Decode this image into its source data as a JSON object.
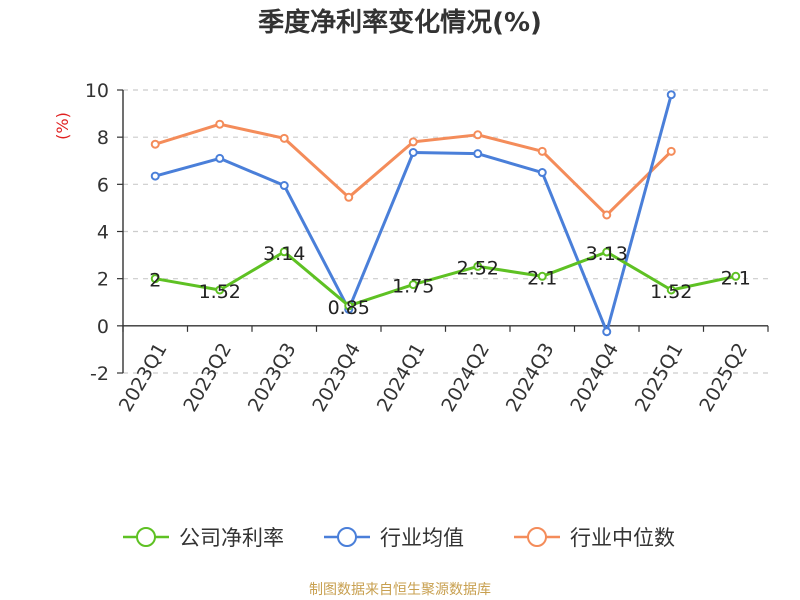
{
  "chart_data": {
    "type": "line",
    "title": "季度净利率变化情况(%)",
    "ylabel": "(%)",
    "ylim": [
      -2,
      10
    ],
    "yticks": [
      -2,
      0,
      2,
      4,
      6,
      8,
      10
    ],
    "grid": true,
    "legend_position": "bottom",
    "categories": [
      "2023Q1",
      "2023Q2",
      "2023Q3",
      "2023Q4",
      "2024Q1",
      "2024Q2",
      "2024Q3",
      "2024Q4",
      "2025Q1",
      "2025Q2"
    ],
    "series": [
      {
        "name": "公司净利率",
        "color": "#5ec123",
        "values": [
          2,
          1.52,
          3.14,
          0.85,
          1.75,
          2.52,
          2.1,
          3.13,
          1.52,
          2.1
        ],
        "labels": [
          "2",
          "1.52",
          "3.14",
          "0.85",
          "1.75",
          "2.52",
          "2.1",
          "3.13",
          "1.52",
          "2.1"
        ]
      },
      {
        "name": "行业均值",
        "color": "#4a7fd9",
        "values": [
          6.35,
          7.1,
          5.95,
          0.7,
          7.35,
          7.3,
          6.5,
          -0.25,
          9.8,
          null
        ]
      },
      {
        "name": "行业中位数",
        "color": "#f48c5a",
        "values": [
          7.7,
          8.55,
          7.95,
          5.45,
          7.8,
          8.1,
          7.4,
          4.7,
          7.4,
          null
        ]
      }
    ]
  },
  "source": "制图数据来自恒生聚源数据库"
}
